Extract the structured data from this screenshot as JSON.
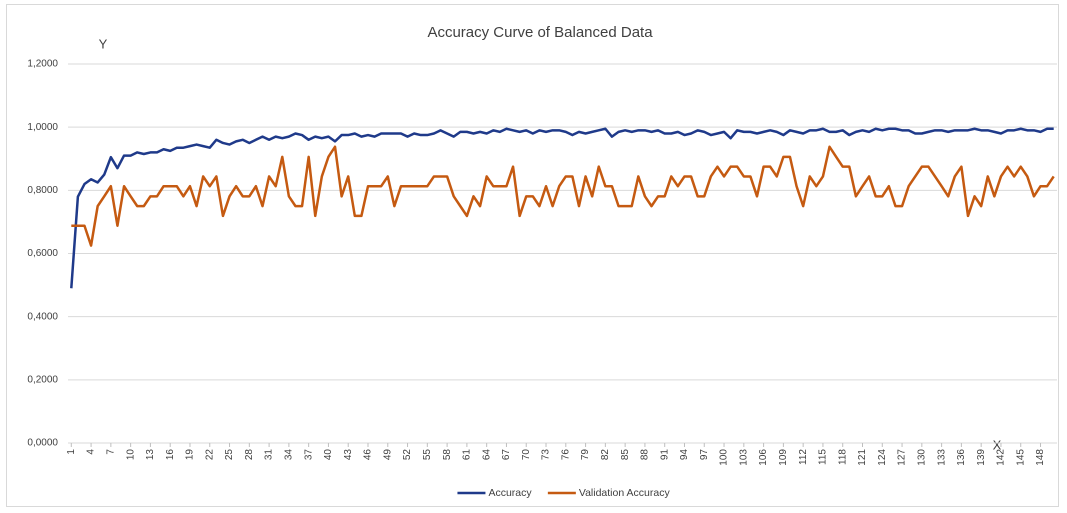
{
  "chart_data": {
    "type": "line",
    "title": "Accuracy Curve of Balanced Data",
    "y_label": "Y",
    "x_label": "X",
    "x": [
      1,
      2,
      3,
      4,
      5,
      6,
      7,
      8,
      9,
      10,
      11,
      12,
      13,
      14,
      15,
      16,
      17,
      18,
      19,
      20,
      21,
      22,
      23,
      24,
      25,
      26,
      27,
      28,
      29,
      30,
      31,
      32,
      33,
      34,
      35,
      36,
      37,
      38,
      39,
      40,
      41,
      42,
      43,
      44,
      45,
      46,
      47,
      48,
      49,
      50,
      51,
      52,
      53,
      54,
      55,
      56,
      57,
      58,
      59,
      60,
      61,
      62,
      63,
      64,
      65,
      66,
      67,
      68,
      69,
      70,
      71,
      72,
      73,
      74,
      75,
      76,
      77,
      78,
      79,
      80,
      81,
      82,
      83,
      84,
      85,
      86,
      87,
      88,
      89,
      90,
      91,
      92,
      93,
      94,
      95,
      96,
      97,
      98,
      99,
      100,
      101,
      102,
      103,
      104,
      105,
      106,
      107,
      108,
      109,
      110,
      111,
      112,
      113,
      114,
      115,
      116,
      117,
      118,
      119,
      120,
      121,
      122,
      123,
      124,
      125,
      126,
      127,
      128,
      129,
      130,
      131,
      132,
      133,
      134,
      135,
      136,
      137,
      138,
      139,
      140,
      141,
      142,
      143,
      144,
      145,
      146,
      147,
      148,
      149,
      150
    ],
    "xlim": [
      0.5,
      150.5
    ],
    "xticks": [
      1,
      4,
      7,
      10,
      13,
      16,
      19,
      22,
      25,
      28,
      31,
      34,
      37,
      40,
      43,
      46,
      49,
      52,
      55,
      58,
      61,
      64,
      67,
      70,
      73,
      76,
      79,
      82,
      85,
      88,
      91,
      94,
      97,
      100,
      103,
      106,
      109,
      112,
      115,
      118,
      121,
      124,
      127,
      130,
      133,
      136,
      139,
      142,
      145,
      148
    ],
    "ylim": [
      0,
      1.2
    ],
    "yticks": [
      {
        "value": 0,
        "label": "0,0000"
      },
      {
        "value": 0.2,
        "label": "0,2000"
      },
      {
        "value": 0.4,
        "label": "0,4000"
      },
      {
        "value": 0.6,
        "label": "0,6000"
      },
      {
        "value": 0.8,
        "label": "0,8000"
      },
      {
        "value": 1.0,
        "label": "1,0000"
      },
      {
        "value": 1.2,
        "label": "1,2000"
      }
    ],
    "grid": true,
    "legend": "bottom",
    "series": [
      {
        "name": "Accuracy",
        "color": "#1f3a8a",
        "values": [
          0.49,
          0.78,
          0.82,
          0.835,
          0.825,
          0.85,
          0.905,
          0.87,
          0.91,
          0.91,
          0.92,
          0.915,
          0.92,
          0.92,
          0.93,
          0.925,
          0.935,
          0.935,
          0.94,
          0.945,
          0.94,
          0.935,
          0.96,
          0.95,
          0.945,
          0.955,
          0.96,
          0.95,
          0.96,
          0.97,
          0.96,
          0.97,
          0.965,
          0.97,
          0.98,
          0.975,
          0.96,
          0.97,
          0.965,
          0.97,
          0.955,
          0.975,
          0.975,
          0.98,
          0.97,
          0.975,
          0.97,
          0.98,
          0.98,
          0.98,
          0.98,
          0.97,
          0.98,
          0.975,
          0.975,
          0.98,
          0.99,
          0.98,
          0.97,
          0.985,
          0.985,
          0.98,
          0.985,
          0.98,
          0.99,
          0.985,
          0.995,
          0.99,
          0.985,
          0.99,
          0.98,
          0.99,
          0.985,
          0.99,
          0.99,
          0.985,
          0.975,
          0.985,
          0.98,
          0.985,
          0.99,
          0.995,
          0.97,
          0.985,
          0.99,
          0.985,
          0.99,
          0.99,
          0.985,
          0.99,
          0.98,
          0.98,
          0.985,
          0.975,
          0.98,
          0.99,
          0.985,
          0.975,
          0.98,
          0.985,
          0.965,
          0.99,
          0.985,
          0.985,
          0.98,
          0.985,
          0.99,
          0.985,
          0.975,
          0.99,
          0.985,
          0.98,
          0.99,
          0.99,
          0.995,
          0.985,
          0.985,
          0.99,
          0.975,
          0.985,
          0.99,
          0.985,
          0.995,
          0.99,
          0.995,
          0.995,
          0.99,
          0.99,
          0.98,
          0.98,
          0.985,
          0.99,
          0.99,
          0.985,
          0.99,
          0.99,
          0.99,
          0.995,
          0.99,
          0.99,
          0.985,
          0.98,
          0.99,
          0.99,
          0.995,
          0.99,
          0.99,
          0.985,
          0.995,
          0.995
        ]
      },
      {
        "name": "Validation Accuracy",
        "color": "#c55a11",
        "values": [
          0.688,
          0.688,
          0.688,
          0.625,
          0.75,
          0.781,
          0.813,
          0.688,
          0.813,
          0.781,
          0.75,
          0.75,
          0.781,
          0.781,
          0.813,
          0.813,
          0.813,
          0.781,
          0.813,
          0.75,
          0.844,
          0.813,
          0.844,
          0.719,
          0.781,
          0.813,
          0.781,
          0.781,
          0.813,
          0.75,
          0.844,
          0.813,
          0.906,
          0.781,
          0.75,
          0.75,
          0.906,
          0.719,
          0.844,
          0.906,
          0.938,
          0.781,
          0.844,
          0.719,
          0.719,
          0.813,
          0.813,
          0.813,
          0.844,
          0.75,
          0.813,
          0.813,
          0.813,
          0.813,
          0.813,
          0.844,
          0.844,
          0.844,
          0.781,
          0.75,
          0.719,
          0.781,
          0.75,
          0.844,
          0.813,
          0.813,
          0.813,
          0.875,
          0.719,
          0.781,
          0.781,
          0.75,
          0.813,
          0.75,
          0.813,
          0.844,
          0.844,
          0.75,
          0.844,
          0.781,
          0.875,
          0.813,
          0.813,
          0.75,
          0.75,
          0.75,
          0.844,
          0.781,
          0.75,
          0.781,
          0.781,
          0.844,
          0.813,
          0.844,
          0.844,
          0.781,
          0.781,
          0.844,
          0.875,
          0.844,
          0.875,
          0.875,
          0.844,
          0.844,
          0.781,
          0.875,
          0.875,
          0.844,
          0.906,
          0.906,
          0.813,
          0.75,
          0.844,
          0.813,
          0.844,
          0.938,
          0.906,
          0.875,
          0.875,
          0.781,
          0.813,
          0.844,
          0.781,
          0.781,
          0.813,
          0.75,
          0.75,
          0.813,
          0.844,
          0.875,
          0.875,
          0.844,
          0.813,
          0.781,
          0.844,
          0.875,
          0.719,
          0.781,
          0.75,
          0.844,
          0.781,
          0.844,
          0.875,
          0.844,
          0.875,
          0.844,
          0.781,
          0.813,
          0.813,
          0.844
        ]
      }
    ]
  }
}
